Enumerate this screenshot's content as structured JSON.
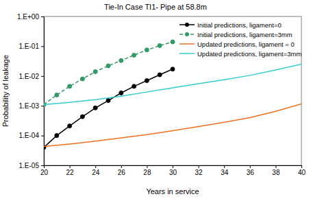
{
  "chart_data": {
    "type": "line",
    "title": "Tie-In Case TI1- Pipe at 58.8m",
    "x_label": "Years in service",
    "y_label": "Probability of leakage",
    "log": "y",
    "grid": false,
    "legend": "upper right",
    "xlim": [
      20,
      40
    ],
    "xticks": [
      20,
      22,
      24,
      26,
      28,
      30,
      32,
      34,
      36,
      38,
      40
    ],
    "ylim": [
      1e-05,
      1
    ],
    "yticks": [
      {
        "value": 1e-05,
        "label": "1.E-05"
      },
      {
        "value": 0.0001,
        "label": "1.E-04"
      },
      {
        "value": 0.001,
        "label": "1.E-03"
      },
      {
        "value": 0.01,
        "label": "1.E-02"
      },
      {
        "value": 0.1,
        "label": "1.E-01"
      },
      {
        "value": 1,
        "label": "1.E+00"
      }
    ],
    "series": [
      {
        "name": "Initial predictions, ligament=0",
        "color": "#000000",
        "marker": "circle",
        "line_style": "solid",
        "x": [
          20,
          21,
          22,
          23,
          24,
          25,
          26,
          27,
          28,
          29,
          30
        ],
        "values": [
          4e-05,
          0.0001,
          0.00021,
          0.00043,
          0.00085,
          0.0015,
          0.0027,
          0.0045,
          0.007,
          0.011,
          0.017
        ]
      },
      {
        "name": "Initial predictions, ligament=3mm",
        "color": "#339966",
        "marker": "circle",
        "line_style": "dashed",
        "x": [
          20,
          21,
          22,
          23,
          24,
          25,
          26,
          27,
          28,
          29,
          30
        ],
        "values": [
          0.0011,
          0.0023,
          0.0045,
          0.008,
          0.014,
          0.022,
          0.033,
          0.05,
          0.075,
          0.105,
          0.14
        ]
      },
      {
        "name": "Updated predictions, ligament = 0",
        "color": "#F07020",
        "marker": "none",
        "line_style": "solid",
        "x": [
          20,
          22,
          24,
          26,
          28,
          30,
          32,
          34,
          36,
          38,
          40
        ],
        "values": [
          4.3e-05,
          5.2e-05,
          6.5e-05,
          8.3e-05,
          0.000108,
          0.000145,
          0.0002,
          0.00028,
          0.0004,
          0.00065,
          0.00115
        ]
      },
      {
        "name": "Updated predictions, ligament=3mm",
        "color": "#33CCCC",
        "marker": "none",
        "line_style": "solid",
        "x": [
          20,
          22,
          24,
          26,
          28,
          30,
          32,
          34,
          36,
          38,
          40
        ],
        "values": [
          0.0011,
          0.0013,
          0.0016,
          0.0021,
          0.0029,
          0.004,
          0.0055,
          0.0075,
          0.0105,
          0.016,
          0.025
        ]
      }
    ]
  }
}
